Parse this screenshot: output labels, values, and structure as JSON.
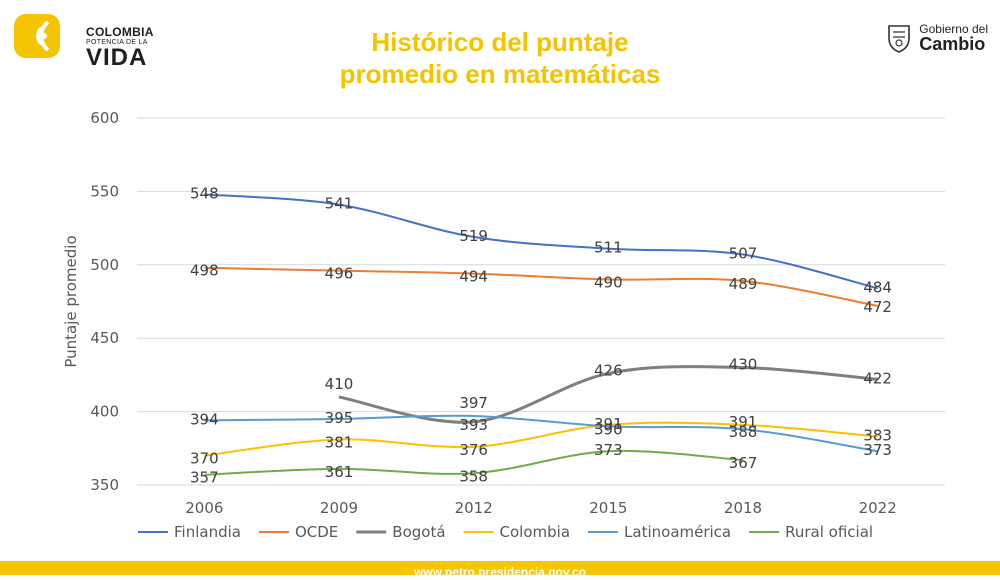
{
  "brand_left": {
    "line1": "COLOMBIA",
    "line2": "POTENCIA DE LA",
    "line3": "VIDA",
    "color": "#f5c400"
  },
  "brand_right": {
    "line1": "Gobierno del",
    "line2": "Cambio"
  },
  "footer": {
    "url": "www.petro.presidencia.gov.co",
    "color": "#f7c600"
  },
  "chart_data": {
    "type": "line",
    "title_line1": "Histórico del puntaje",
    "title_line2": "promedio en matemáticas",
    "ylabel": "Puntaje promedio",
    "xlabel": "",
    "ylim": [
      350,
      600
    ],
    "yticks": [
      350,
      400,
      450,
      500,
      550,
      600
    ],
    "categories": [
      "2006",
      "2009",
      "2012",
      "2015",
      "2018",
      "2022"
    ],
    "grid": true,
    "legend_position": "bottom",
    "series": [
      {
        "name": "Finlandia",
        "color": "#4472c4",
        "values": [
          548,
          541,
          519,
          511,
          507,
          484
        ]
      },
      {
        "name": "OCDE",
        "color": "#ed7d31",
        "values": [
          498,
          496,
          494,
          490,
          489,
          472
        ]
      },
      {
        "name": "Bogotá",
        "color": "#7f7f7f",
        "values": [
          null,
          410,
          393,
          426,
          430,
          422
        ]
      },
      {
        "name": "Colombia",
        "color": "#ffc000",
        "values": [
          370,
          381,
          376,
          391,
          391,
          383
        ]
      },
      {
        "name": "Latinoamérica",
        "color": "#5b9bd5",
        "values": [
          394,
          395,
          397,
          390,
          388,
          373
        ]
      },
      {
        "name": "Rural oficial",
        "color": "#70ad47",
        "values": [
          357,
          361,
          358,
          373,
          367,
          null
        ]
      }
    ]
  }
}
